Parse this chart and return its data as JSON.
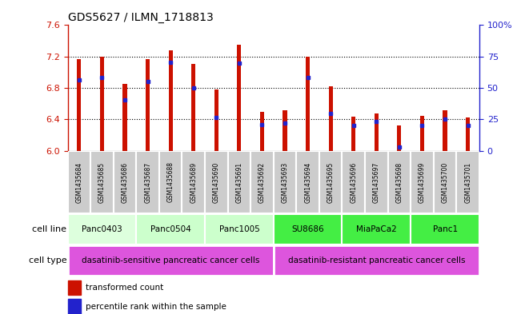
{
  "title": "GDS5627 / ILMN_1718813",
  "samples": [
    "GSM1435684",
    "GSM1435685",
    "GSM1435686",
    "GSM1435687",
    "GSM1435688",
    "GSM1435689",
    "GSM1435690",
    "GSM1435691",
    "GSM1435692",
    "GSM1435693",
    "GSM1435694",
    "GSM1435695",
    "GSM1435696",
    "GSM1435697",
    "GSM1435698",
    "GSM1435699",
    "GSM1435700",
    "GSM1435701"
  ],
  "bar_heights": [
    7.17,
    7.2,
    6.85,
    7.17,
    7.28,
    7.11,
    6.78,
    7.35,
    6.49,
    6.52,
    7.2,
    6.82,
    6.43,
    6.47,
    6.32,
    6.44,
    6.52,
    6.42
  ],
  "percentile_values": [
    6.9,
    6.93,
    6.65,
    6.88,
    7.13,
    6.8,
    6.42,
    7.12,
    6.33,
    6.35,
    6.93,
    6.47,
    6.32,
    6.37,
    6.05,
    6.32,
    6.4,
    6.32
  ],
  "ymin": 6.0,
  "ymax": 7.6,
  "yticks": [
    6.0,
    6.4,
    6.8,
    7.2,
    7.6
  ],
  "right_yticks": [
    0,
    25,
    50,
    75,
    100
  ],
  "bar_color": "#cc1100",
  "percentile_color": "#2222cc",
  "cell_lines": [
    {
      "label": "Panc0403",
      "start": 0,
      "end": 3,
      "color": "#ddffdd"
    },
    {
      "label": "Panc0504",
      "start": 3,
      "end": 6,
      "color": "#ccffcc"
    },
    {
      "label": "Panc1005",
      "start": 6,
      "end": 9,
      "color": "#ccffcc"
    },
    {
      "label": "SU8686",
      "start": 9,
      "end": 12,
      "color": "#44ee44"
    },
    {
      "label": "MiaPaCa2",
      "start": 12,
      "end": 15,
      "color": "#44ee44"
    },
    {
      "label": "Panc1",
      "start": 15,
      "end": 18,
      "color": "#44ee44"
    }
  ],
  "cell_types": [
    {
      "label": "dasatinib-sensitive pancreatic cancer cells",
      "start": 0,
      "end": 9,
      "color": "#dd55dd"
    },
    {
      "label": "dasatinib-resistant pancreatic cancer cells",
      "start": 9,
      "end": 18,
      "color": "#dd55dd"
    }
  ],
  "legend_items": [
    {
      "color": "#cc1100",
      "label": "transformed count"
    },
    {
      "color": "#2222cc",
      "label": "percentile rank within the sample"
    }
  ]
}
